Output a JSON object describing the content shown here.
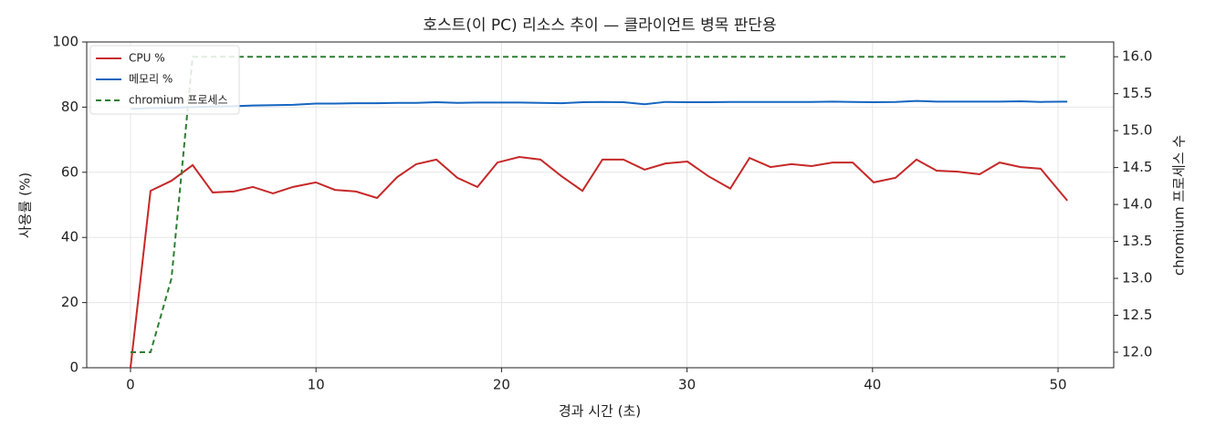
{
  "chart_data": {
    "type": "line",
    "title": "호스트(이 PC) 리소스 추이 — 클라이언트 병목 판단용",
    "x_label": "경과 시간 (초)",
    "y_label": "사용률 (%)",
    "y2_label": "chromium 프로세스 수",
    "x": [
      0,
      1.08,
      2.21,
      3.35,
      4.43,
      5.56,
      6.59,
      7.68,
      8.76,
      9.99,
      11.02,
      12.16,
      13.29,
      14.37,
      15.4,
      16.49,
      17.62,
      18.7,
      19.78,
      20.96,
      22.1,
      23.23,
      24.36,
      25.44,
      26.57,
      27.71,
      28.84,
      30.02,
      31.15,
      32.33,
      33.37,
      34.5,
      35.63,
      36.71,
      37.84,
      38.93,
      40.06,
      41.24,
      42.37,
      43.45,
      44.59,
      45.77,
      46.85,
      47.98,
      49.06,
      50.5
    ],
    "series": [
      {
        "name": "CPU %",
        "color": "#c62828",
        "values": [
          0,
          54.3,
          57.4,
          62.2,
          53.8,
          54.1,
          55.5,
          53.5,
          55.5,
          56.9,
          54.6,
          54.1,
          52.1,
          58.5,
          62.5,
          63.9,
          58.3,
          55.5,
          63.0,
          64.7,
          63.9,
          58.8,
          54.3,
          63.9,
          63.9,
          60.8,
          62.7,
          63.3,
          58.8,
          55.0,
          64.4,
          61.6,
          62.5,
          61.9,
          63.0,
          63.0,
          56.9,
          58.3,
          63.9,
          60.5,
          60.2,
          59.4,
          63.0,
          61.6,
          61.1,
          51.3
        ]
      },
      {
        "name": "메모리 %",
        "color": "#1565c0",
        "values": [
          79.5,
          79.7,
          79.8,
          80,
          80.2,
          80.3,
          80.5,
          80.6,
          80.7,
          81.1,
          81.1,
          81.2,
          81.2,
          81.3,
          81.3,
          81.5,
          81.3,
          81.4,
          81.4,
          81.4,
          81.3,
          81.2,
          81.5,
          81.6,
          81.5,
          80.9,
          81.6,
          81.5,
          81.5,
          81.6,
          81.6,
          81.6,
          81.6,
          81.6,
          81.7,
          81.6,
          81.5,
          81.6,
          81.9,
          81.7,
          81.7,
          81.7,
          81.7,
          81.8,
          81.6,
          81.7
        ]
      },
      {
        "name": "chromium 프로세스",
        "color": "#2e7d32",
        "dashed": true,
        "axis": "y2",
        "values": [
          12,
          12,
          13,
          16,
          16,
          16,
          16,
          16,
          16,
          16,
          16,
          16,
          16,
          16,
          16,
          16,
          16,
          16,
          16,
          16,
          16,
          16,
          16,
          16,
          16,
          16,
          16,
          16,
          16,
          16,
          16,
          16,
          16,
          16,
          16,
          16,
          16,
          16,
          16,
          16,
          16,
          16,
          16,
          16,
          16,
          16
        ]
      }
    ],
    "xlim": [
      -2.36,
      53.0
    ],
    "xticks": [
      0,
      10,
      20,
      30,
      40,
      50
    ],
    "ylim": [
      0,
      100
    ],
    "yticks": [
      0,
      20,
      40,
      60,
      80,
      100
    ],
    "y2lim": [
      11.79,
      16.2
    ],
    "y2ticks": [
      {
        "value": 12,
        "label": "12.0"
      },
      12.5,
      {
        "value": 13,
        "label": "13.0"
      },
      13.5,
      {
        "value": 14,
        "label": "14.0"
      },
      14.5,
      {
        "value": 15,
        "label": "15.0"
      },
      15.5,
      {
        "value": 16,
        "label": "16.0"
      }
    ],
    "grid": true,
    "legend": "upper-left"
  }
}
